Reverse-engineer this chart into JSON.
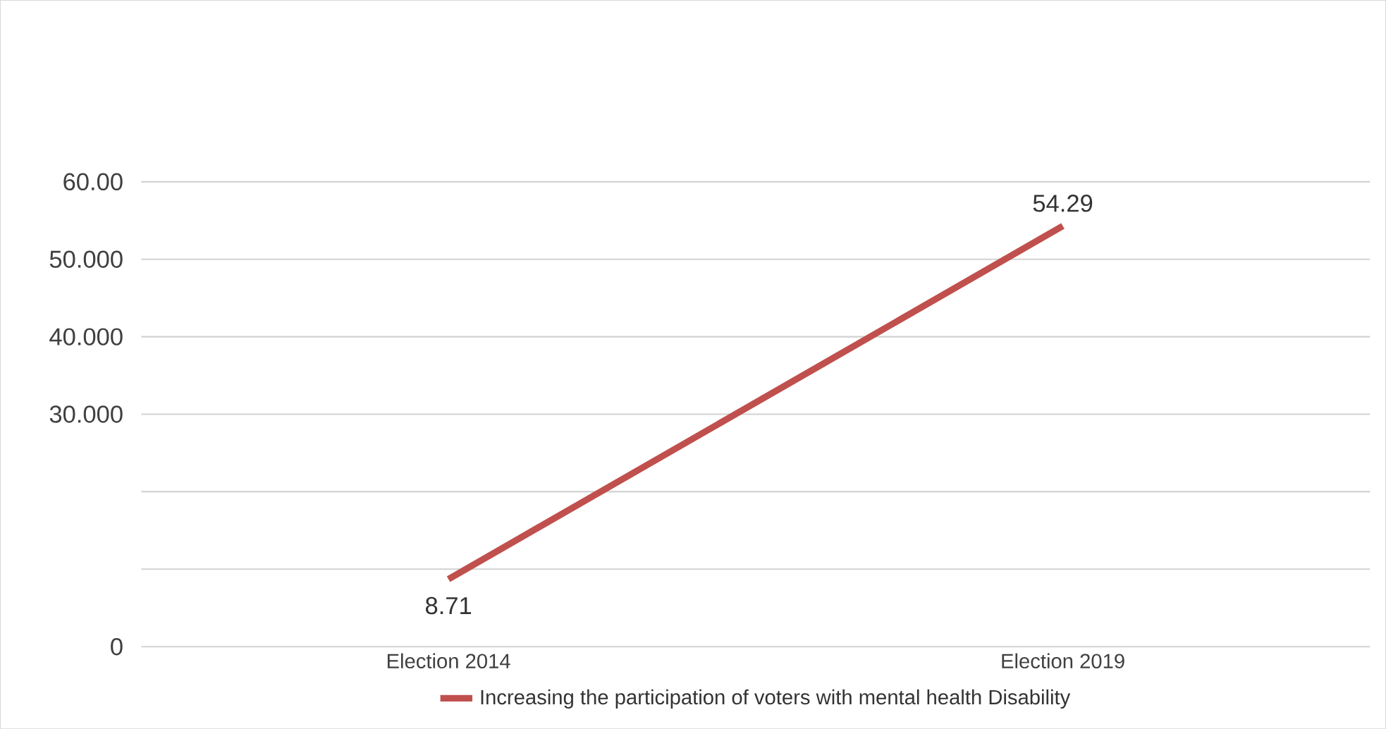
{
  "chart_data": {
    "type": "line",
    "categories": [
      "Election 2014",
      "Election 2019"
    ],
    "series": [
      {
        "name": "Increasing the participation of voters with mental health Disability",
        "color": "#c0504d",
        "values": [
          8.71,
          54.29
        ]
      }
    ],
    "ylim": [
      0,
      60
    ],
    "yticks": [
      {
        "value": 0,
        "label": "0"
      },
      {
        "value": 10,
        "label": null
      },
      {
        "value": 20,
        "label": null
      },
      {
        "value": 30,
        "label": "30.000"
      },
      {
        "value": 40,
        "label": "40.000"
      },
      {
        "value": 50,
        "label": "50.000"
      },
      {
        "value": 60,
        "label": "60.00"
      }
    ],
    "grid": "y",
    "legend": "bottom",
    "data_labels": true,
    "marker": "none",
    "line_style": "solid"
  }
}
